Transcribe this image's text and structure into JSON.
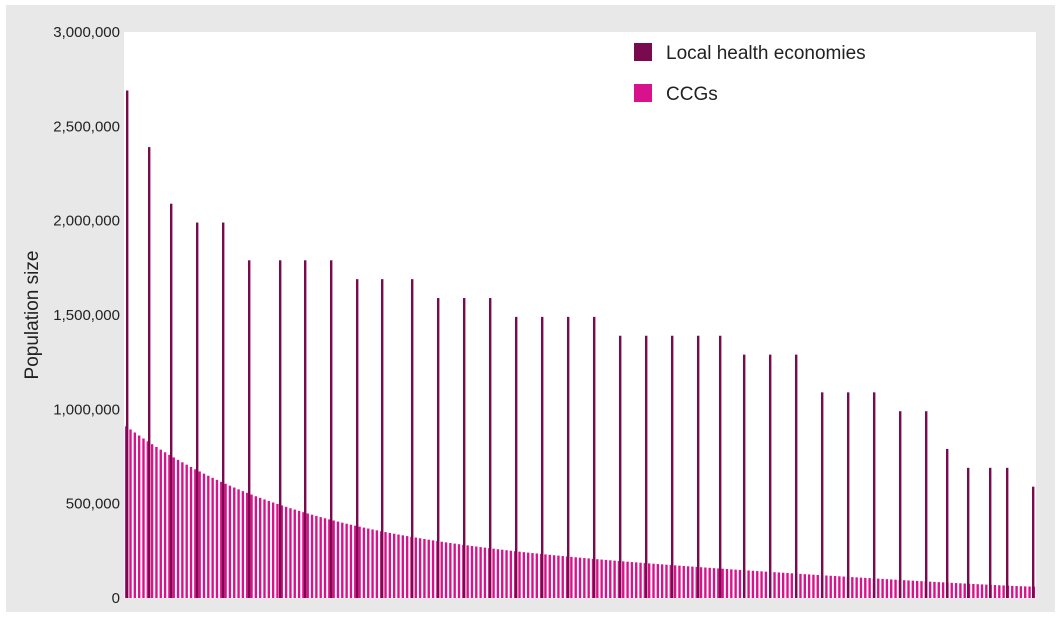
{
  "chart_data": {
    "type": "bar",
    "ylabel": "Population size",
    "ylim": [
      0,
      3000000
    ],
    "y_ticks": [
      "0",
      "500,000",
      "1,000,000",
      "1,500,000",
      "2,000,000",
      "2,500,000",
      "3,000,000"
    ],
    "y_tick_values": [
      0,
      500000,
      1000000,
      1500000,
      2000000,
      2500000,
      3000000
    ],
    "grid": false,
    "legend_position": "top-right",
    "series": [
      {
        "name": "Local health economies",
        "color": "#7a0a4e",
        "values": [
          2690000,
          2390000,
          2090000,
          1990000,
          1990000,
          1790000,
          1790000,
          1790000,
          1790000,
          1690000,
          1690000,
          1690000,
          1590000,
          1590000,
          1590000,
          1490000,
          1490000,
          1490000,
          1490000,
          1390000,
          1390000,
          1390000,
          1390000,
          1390000,
          1290000,
          1290000,
          1290000,
          1090000,
          1090000,
          1090000,
          990000,
          990000,
          790000,
          690000,
          690000,
          690000,
          590000
        ]
      },
      {
        "name": "CCGs",
        "color": "#d8128c",
        "start": 910000,
        "end": 60000,
        "count": 211
      }
    ]
  },
  "legend": {
    "items": [
      {
        "label": "Local health economies",
        "color": "#7a0a4e"
      },
      {
        "label": "CCGs",
        "color": "#d8128c"
      }
    ]
  }
}
